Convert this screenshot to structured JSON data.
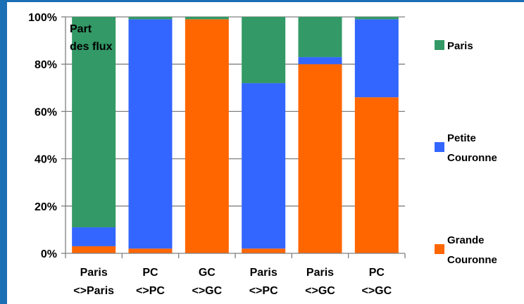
{
  "chart_data": {
    "type": "bar",
    "stacked": true,
    "categories": [
      [
        "Paris",
        "<>Paris"
      ],
      [
        "PC",
        "<>PC"
      ],
      [
        "GC",
        "<>GC"
      ],
      [
        "Paris",
        "<>PC"
      ],
      [
        "Paris",
        "<>GC"
      ],
      [
        "PC",
        "<>GC"
      ]
    ],
    "series": [
      {
        "name": "Grande Couronne",
        "legend_lines": [
          "Grande",
          "Couronne"
        ],
        "color": "#ff6600",
        "values": [
          3,
          2,
          99,
          2,
          80,
          66
        ]
      },
      {
        "name": "Petite Couronne",
        "legend_lines": [
          "Petite",
          "Couronne"
        ],
        "color": "#3366ff",
        "values": [
          8,
          97,
          0,
          70,
          3,
          33
        ]
      },
      {
        "name": "Paris",
        "legend_lines": [
          "Paris"
        ],
        "color": "#339966",
        "values": [
          89,
          1,
          1,
          28,
          17,
          1
        ]
      }
    ],
    "ylabel_lines": [
      "Part",
      "des flux"
    ],
    "ylim": [
      0,
      100
    ],
    "yticks": [
      "0%",
      "20%",
      "40%",
      "60%",
      "80%",
      "100%"
    ],
    "grid": true,
    "legend_position": "right"
  }
}
